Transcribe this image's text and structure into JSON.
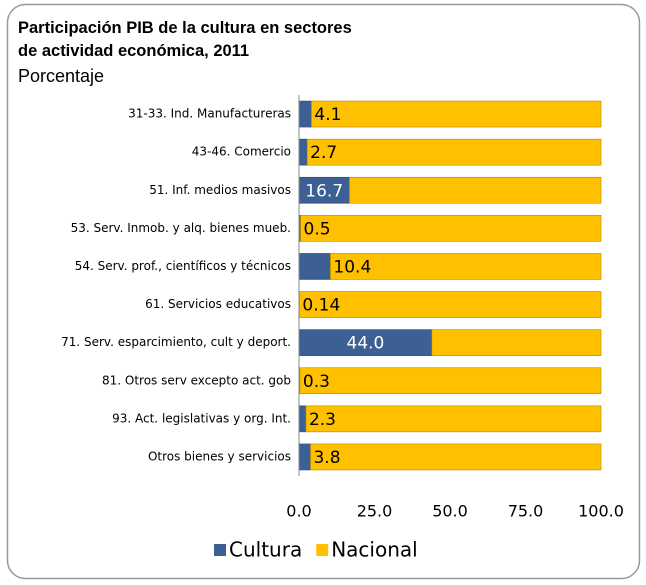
{
  "chart_data": {
    "type": "stacked_bar_horizontal",
    "title": "Participación PIB de la cultura en sectores de actividad económica,  2011",
    "subtitle": "Porcentaje",
    "categories": [
      "31-33. Ind. Manufactureras",
      "43-46. Comercio",
      "51. Inf. medios masivos",
      "53. Serv. Inmob. y alq. bienes mueb.",
      "54. Serv. prof., científicos y técnicos",
      "61. Servicios educativos",
      "71. Serv. esparcimiento, cult y deport.",
      "81. Otros serv excepto act. gob",
      "93. Act. legislativas y org. Int.",
      "Otros bienes y servicios"
    ],
    "series": [
      {
        "name": "Cultura",
        "color": "#3c6094",
        "values": [
          4.1,
          2.7,
          16.7,
          0.5,
          10.4,
          0.14,
          44.0,
          0.3,
          2.3,
          3.8
        ],
        "value_labels": [
          "4.1",
          "2.7",
          "16.7",
          "0.5",
          "10.4",
          "0.14",
          "44.0",
          "0.3",
          "2.3",
          "3.8"
        ]
      },
      {
        "name": "Nacional",
        "color": "#ffc000",
        "values": [
          95.9,
          97.3,
          83.3,
          99.5,
          89.6,
          99.86,
          56.0,
          99.7,
          97.7,
          96.2
        ]
      }
    ],
    "xlim": [
      0,
      100
    ],
    "xticks": [
      {
        "value": 0,
        "label": "0.0"
      },
      {
        "value": 25,
        "label": "25.0"
      },
      {
        "value": 50,
        "label": "50.0"
      },
      {
        "value": 75,
        "label": "75.0"
      },
      {
        "value": 100,
        "label": "100.0"
      }
    ],
    "grid": false,
    "legend": "bottom"
  }
}
